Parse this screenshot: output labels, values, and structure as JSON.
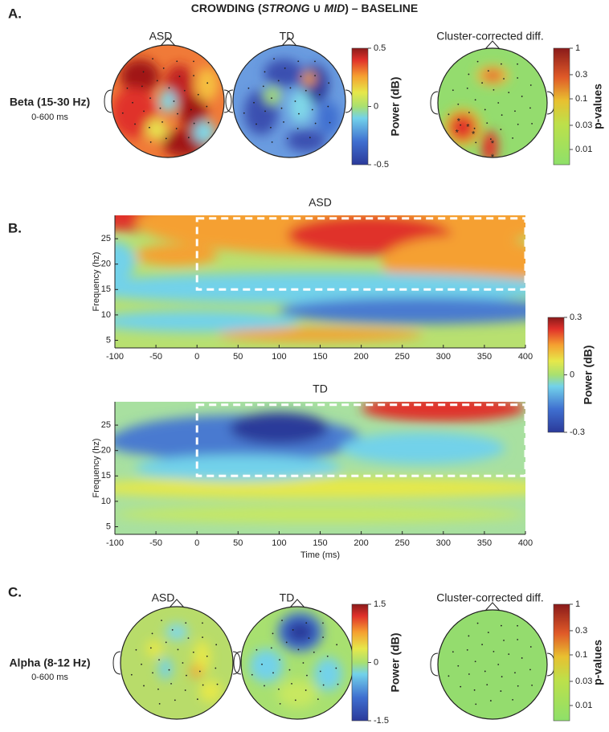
{
  "figure": {
    "title": {
      "lead": "CROWDING (",
      "strong": "STRONG",
      "union": " ∪ ",
      "mid": "MID",
      "close": ")",
      "tail": "  – BASELINE"
    },
    "panel_a": {
      "label": "A.",
      "band": "Beta (15-30 Hz)",
      "window": "0-600 ms",
      "topo_titles": [
        "ASD",
        "TD",
        "Cluster-corrected diff."
      ],
      "power_colorbar": {
        "label": "Power (dB)",
        "lim": [
          -0.5,
          0.5
        ],
        "ticks": [
          -0.5,
          0,
          0.5
        ]
      },
      "p_colorbar": {
        "label": "p-values",
        "log": true,
        "lim": [
          0.005,
          1
        ],
        "ticks": [
          0.01,
          0.03,
          0.1,
          0.3,
          1
        ]
      }
    },
    "panel_b": {
      "label": "B.",
      "plots": [
        {
          "title": "ASD",
          "xlim": [
            -100,
            400
          ],
          "ylim": [
            3.5,
            29.6
          ],
          "xticks": [
            -100,
            -50,
            0,
            50,
            100,
            150,
            200,
            250,
            300,
            350,
            400
          ],
          "yticks": [
            5,
            10,
            15,
            20,
            25
          ],
          "ylabel": "Frequency (hz)",
          "box": {
            "x": [
              0,
              400
            ],
            "y": [
              15,
              29
            ]
          }
        },
        {
          "title": "TD",
          "xlim": [
            -100,
            400
          ],
          "ylim": [
            3.5,
            29.6
          ],
          "xticks": [
            -100,
            -50,
            0,
            50,
            100,
            150,
            200,
            250,
            300,
            350,
            400
          ],
          "yticks": [
            5,
            10,
            15,
            20,
            25
          ],
          "ylabel": "Frequency (hz)",
          "xlabel": "Time (ms)",
          "box": {
            "x": [
              0,
              400
            ],
            "y": [
              15,
              29
            ]
          }
        }
      ],
      "colorbar": {
        "label": "Power (dB)",
        "lim": [
          -0.3,
          0.3
        ],
        "ticks": [
          -0.3,
          0,
          0.3
        ]
      }
    },
    "panel_c": {
      "label": "C.",
      "band": "Alpha (8-12 Hz)",
      "window": "0-600 ms",
      "topo_titles": [
        "ASD",
        "TD",
        "Cluster-corrected diff."
      ],
      "power_colorbar": {
        "label": "Power (dB)",
        "lim": [
          -1.5,
          1.5
        ],
        "ticks": [
          -1.5,
          0,
          1.5
        ]
      },
      "p_colorbar": {
        "label": "p-values",
        "log": true,
        "lim": [
          0.005,
          1
        ],
        "ticks": [
          0.01,
          0.03,
          0.1,
          0.3,
          1
        ]
      }
    }
  }
}
